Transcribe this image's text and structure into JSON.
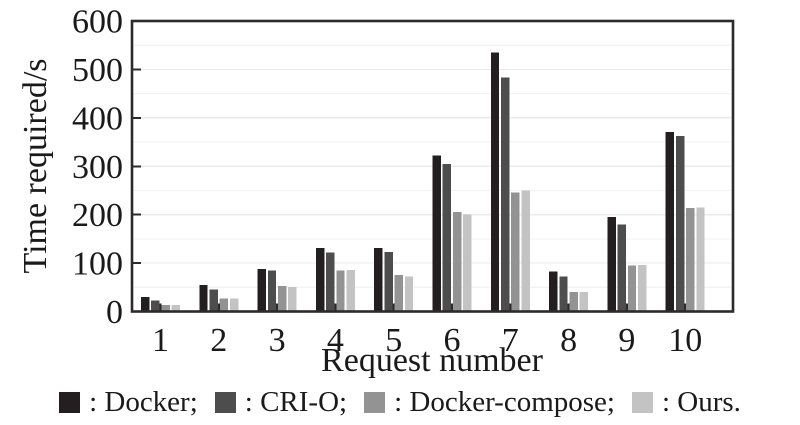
{
  "chart_data": {
    "type": "bar",
    "title": "",
    "xlabel": "Request number",
    "ylabel": "Time required/s",
    "categories": [
      "1",
      "2",
      "3",
      "4",
      "5",
      "6",
      "7",
      "8",
      "9",
      "10"
    ],
    "series": [
      {
        "name": "Docker",
        "legend_label": ": Docker;",
        "color": "#231f20",
        "values": [
          30,
          55,
          88,
          131,
          131,
          322,
          535,
          83,
          195,
          371
        ]
      },
      {
        "name": "CRI-O",
        "legend_label": ": CRI-O;",
        "color": "#4d4d4d",
        "values": [
          23,
          45,
          85,
          122,
          123,
          305,
          483,
          72,
          180,
          362
        ]
      },
      {
        "name": "Docker-compose",
        "legend_label": ": Docker-compose;",
        "color": "#939393",
        "values": [
          13,
          27,
          53,
          85,
          75,
          206,
          246,
          40,
          95,
          214
        ]
      },
      {
        "name": "Ours",
        "legend_label": ": Ours.",
        "color": "#c3c3c3",
        "values": [
          13,
          27,
          51,
          86,
          72,
          200,
          250,
          40,
          96,
          215
        ]
      }
    ],
    "ylim": [
      0,
      600
    ],
    "ytick_interval": 100,
    "minor_grid_interval": 50,
    "grid": "faint horizontal minor gridlines",
    "legend_position": "bottom",
    "axis_color": "#2d2a2b",
    "text_color": "#1a1a1a"
  }
}
